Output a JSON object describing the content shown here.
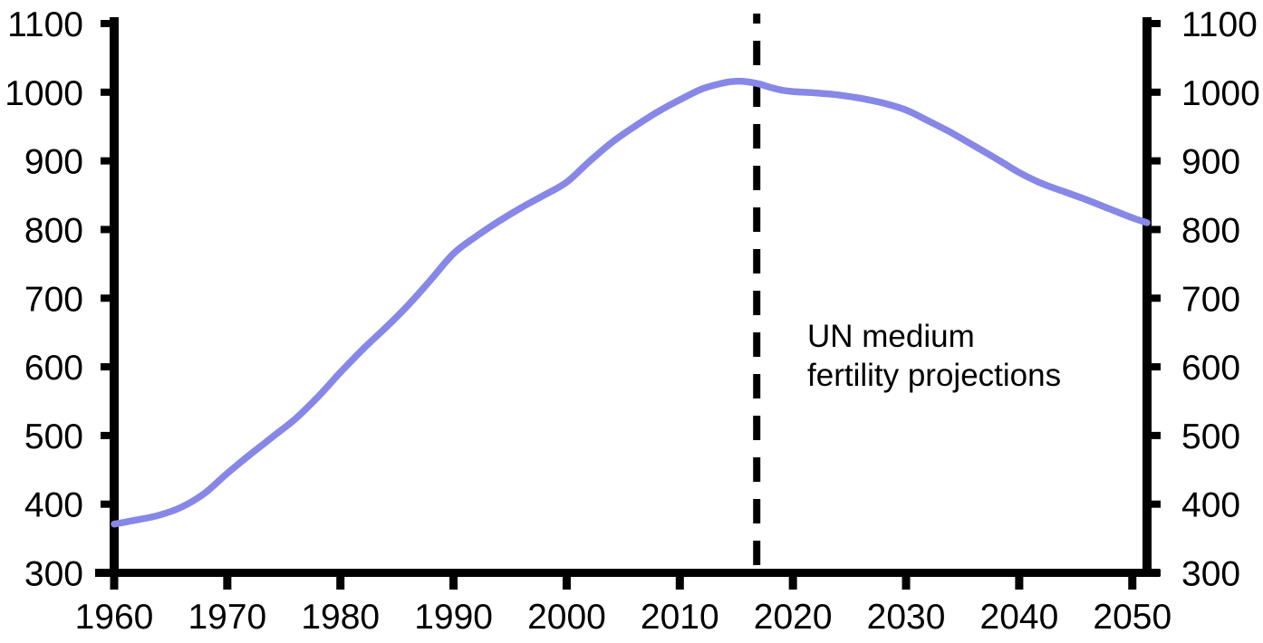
{
  "figure": {
    "background": "#ffffff",
    "annotation": {
      "line1": "UN medium",
      "line2": "fertility projections"
    }
  },
  "chart_data": {
    "type": "line",
    "title": "",
    "xlabel": "",
    "ylabel": "",
    "grid": false,
    "legend": "none",
    "axis_color": "#000000",
    "line_color": "#8787e8",
    "xlim": [
      1960,
      2051.3
    ],
    "ylim": [
      300,
      1100
    ],
    "x_ticks": [
      1960,
      1970,
      1980,
      1990,
      2000,
      2010,
      2020,
      2030,
      2040,
      2050
    ],
    "y_ticks": [
      300,
      400,
      500,
      600,
      700,
      800,
      900,
      1000,
      1100
    ],
    "y_axis_sides": [
      "left",
      "right"
    ],
    "projection_divider": {
      "year": 2016.8,
      "style": "dashed",
      "color": "#000000",
      "label": "UN medium fertility projections"
    },
    "series": [
      {
        "name": "",
        "color": "#8787e8",
        "points": [
          [
            1960,
            371
          ],
          [
            1962,
            377
          ],
          [
            1964,
            384
          ],
          [
            1966,
            396
          ],
          [
            1968,
            416
          ],
          [
            1970,
            445
          ],
          [
            1972,
            472
          ],
          [
            1974,
            498
          ],
          [
            1976,
            524
          ],
          [
            1978,
            556
          ],
          [
            1980,
            592
          ],
          [
            1982,
            626
          ],
          [
            1984,
            657
          ],
          [
            1986,
            690
          ],
          [
            1988,
            727
          ],
          [
            1990,
            765
          ],
          [
            1992,
            790
          ],
          [
            1994,
            812
          ],
          [
            1996,
            832
          ],
          [
            1998,
            850
          ],
          [
            2000,
            869
          ],
          [
            2002,
            899
          ],
          [
            2004,
            927
          ],
          [
            2006,
            950
          ],
          [
            2008,
            971
          ],
          [
            2010,
            989
          ],
          [
            2012,
            1005
          ],
          [
            2014,
            1014
          ],
          [
            2015,
            1016
          ],
          [
            2016,
            1015
          ],
          [
            2017,
            1012
          ],
          [
            2018,
            1007
          ],
          [
            2019,
            1003
          ],
          [
            2020,
            1001
          ],
          [
            2022,
            999
          ],
          [
            2024,
            996
          ],
          [
            2026,
            991
          ],
          [
            2028,
            984
          ],
          [
            2030,
            974
          ],
          [
            2032,
            958
          ],
          [
            2034,
            941
          ],
          [
            2036,
            922
          ],
          [
            2038,
            903
          ],
          [
            2040,
            883
          ],
          [
            2042,
            867
          ],
          [
            2044,
            855
          ],
          [
            2046,
            843
          ],
          [
            2048,
            830
          ],
          [
            2050,
            817
          ],
          [
            2051.3,
            810
          ]
        ]
      }
    ]
  }
}
